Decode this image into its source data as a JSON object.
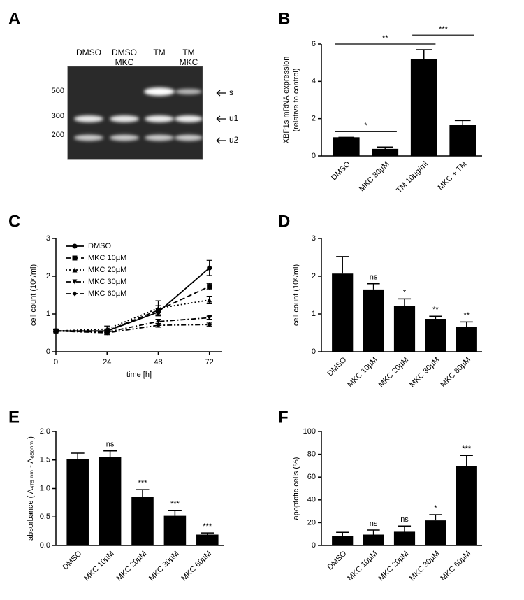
{
  "gel": {
    "panel": "A",
    "lanes": [
      [
        "DMSO"
      ],
      [
        "DMSO",
        "MKC"
      ],
      [
        "TM"
      ],
      [
        "TM",
        "MKC"
      ]
    ],
    "markers": [
      "500",
      "300",
      "200"
    ],
    "bands": [
      "s",
      "u1",
      "u2"
    ]
  },
  "chart_data": [
    {
      "type": "bar",
      "panel": "B",
      "ylabel": [
        "XBP1s mRNA expression",
        "(relative to control)"
      ],
      "categories": [
        "DMSO",
        "MKC 30µM",
        "TM 10µg/ml",
        "MKC + TM"
      ],
      "values": [
        1,
        0.38,
        5.2,
        1.65
      ],
      "errors": [
        0,
        0.1,
        0.5,
        0.25
      ],
      "ylim": [
        0,
        6
      ],
      "yticks": [
        0,
        2,
        4,
        6
      ],
      "color": "#000000",
      "brackets": [
        {
          "from": 0,
          "to": 1,
          "label": "*"
        },
        {
          "from": 0,
          "to": 2,
          "label": "**"
        },
        {
          "from": 2,
          "to": 3,
          "label": "***"
        }
      ]
    },
    {
      "type": "line",
      "panel": "C",
      "xlabel": "time [h]",
      "ylabel": "cell count (10⁶/ml)",
      "x": [
        0,
        24,
        48,
        72
      ],
      "xlim": [
        0,
        78
      ],
      "xticks": [
        0,
        24,
        48,
        72
      ],
      "ylim": [
        0,
        3
      ],
      "yticks": [
        0,
        1,
        2,
        3
      ],
      "legend": "top-left",
      "series": [
        {
          "name": "DMSO",
          "color": "#000000",
          "dash": "solid",
          "marker": "circle",
          "values": [
            0.55,
            0.55,
            1.05,
            2.22
          ],
          "errors": [
            0.03,
            0.05,
            0.1,
            0.2
          ]
        },
        {
          "name": "MKC 10µM",
          "color": "#000000",
          "dash": "dashed",
          "marker": "square",
          "values": [
            0.55,
            0.55,
            1.1,
            1.73
          ],
          "errors": [
            0.03,
            0.05,
            0.12,
            0.08
          ]
        },
        {
          "name": "MKC 20µM",
          "color": "#000000",
          "dash": "dotted",
          "marker": "triangle",
          "values": [
            0.55,
            0.6,
            1.15,
            1.37
          ],
          "errors": [
            0.03,
            0.08,
            0.2,
            0.1
          ]
        },
        {
          "name": "MKC 30µM",
          "color": "#000000",
          "dash": "dashdot",
          "marker": "triangle-down",
          "values": [
            0.55,
            0.52,
            0.8,
            0.9
          ],
          "errors": [
            0.03,
            0.05,
            0.06,
            0.04
          ]
        },
        {
          "name": "MKC 60µM",
          "color": "#000000",
          "dash": "dashdotdot",
          "marker": "diamond",
          "values": [
            0.55,
            0.5,
            0.7,
            0.72
          ],
          "errors": [
            0.03,
            0.05,
            0.05,
            0.04
          ]
        }
      ]
    },
    {
      "type": "bar",
      "panel": "D",
      "ylabel": [
        "cell count (10⁶/ml)"
      ],
      "categories": [
        "DMSO",
        "MKC 10µM",
        "MKC 20µM",
        "MKC 30µM",
        "MKC 60µM"
      ],
      "values": [
        2.07,
        1.65,
        1.22,
        0.87,
        0.65
      ],
      "errors": [
        0.45,
        0.15,
        0.18,
        0.07,
        0.14
      ],
      "annotations": [
        null,
        "ns",
        "*",
        "**",
        "**"
      ],
      "ylim": [
        0,
        3
      ],
      "yticks": [
        0,
        1,
        2,
        3
      ],
      "color": "#000000"
    },
    {
      "type": "bar",
      "panel": "E",
      "ylabel": [
        "absorbance ( A₄₇₅ ₙₘ - A₆₅₀ₙₘ )"
      ],
      "categories": [
        "DMSO",
        "MKC 10µM",
        "MKC 20µM",
        "MKC 30µM",
        "MKC 60µM"
      ],
      "values": [
        1.52,
        1.55,
        0.85,
        0.52,
        0.19
      ],
      "errors": [
        0.1,
        0.11,
        0.13,
        0.09,
        0.03
      ],
      "annotations": [
        null,
        "ns",
        "***",
        "***",
        "***"
      ],
      "ylim": [
        0,
        2
      ],
      "yticks": [
        {
          "value": 0,
          "label": "0.0"
        },
        {
          "value": 0.5,
          "label": "0.5"
        },
        {
          "value": 1,
          "label": "1.0"
        },
        {
          "value": 1.5,
          "label": "1.5"
        },
        {
          "value": 2,
          "label": "2.0"
        }
      ],
      "color": "#000000"
    },
    {
      "type": "bar",
      "panel": "F",
      "ylabel": [
        "apoptotic cells (%)"
      ],
      "categories": [
        "DMSO",
        "MKC 10µM",
        "MKC 20µM",
        "MKC 30µM",
        "MKC 60µM"
      ],
      "values": [
        8.5,
        9.5,
        12,
        22,
        69.5
      ],
      "errors": [
        3,
        4,
        5,
        5,
        9.5
      ],
      "annotations": [
        null,
        "ns",
        "ns",
        "*",
        "***"
      ],
      "ylim": [
        0,
        100
      ],
      "yticks": [
        0,
        20,
        40,
        60,
        80,
        100
      ],
      "color": "#000000"
    }
  ]
}
